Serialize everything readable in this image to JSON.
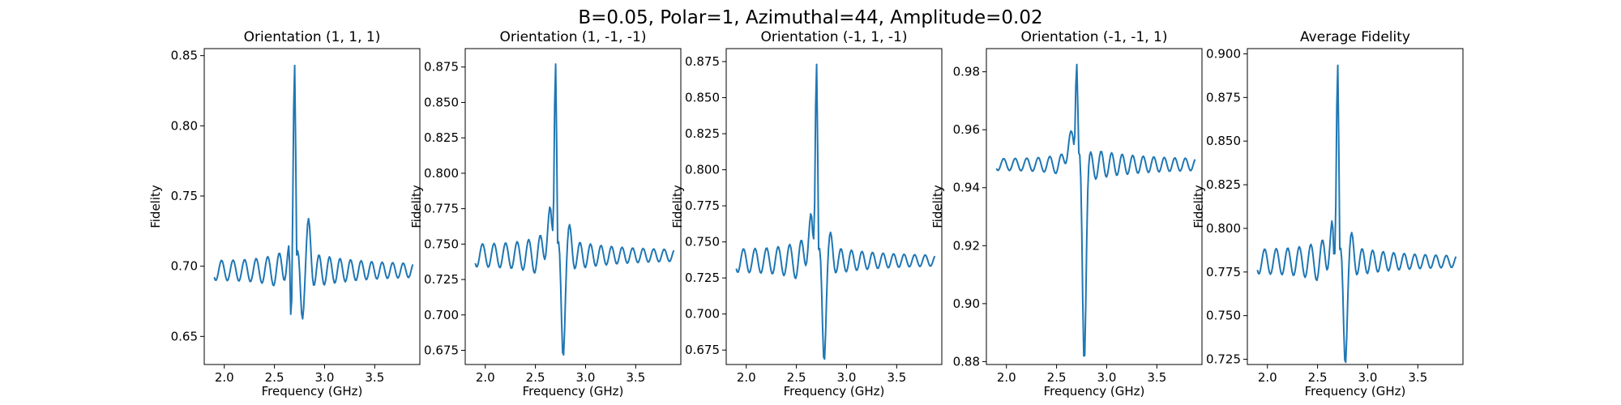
{
  "chart_data": {
    "suptitle": "B=0.05, Polar=1, Azimuthal=44, Amplitude=0.02",
    "line_color": "#1f77b4",
    "panels": [
      {
        "type": "line",
        "title": "Orientation (1, 1, 1)",
        "xlabel": "Frequency (GHz)",
        "ylabel": "Fidelity",
        "xlim": [
          1.8,
          3.95
        ],
        "ylim": [
          0.63,
          0.855
        ],
        "xticks": [
          2.0,
          2.5,
          3.0,
          3.5
        ],
        "xtick_labels": [
          "2.0",
          "2.5",
          "3.0",
          "3.5"
        ],
        "yticks": [
          0.65,
          0.7,
          0.75,
          0.8,
          0.85
        ],
        "ytick_labels": [
          "0.65",
          "0.70",
          "0.75",
          "0.80",
          "0.85"
        ],
        "base": 0.697,
        "pre_amp": 0.007,
        "post_amp": 0.012,
        "peak_y": 0.845,
        "dip_before": 0.64,
        "dip_after": 0.674,
        "bump_before": 0.712,
        "bump_after": 0.721
      },
      {
        "type": "line",
        "title": "Orientation (1, -1, -1)",
        "xlabel": "Frequency (GHz)",
        "ylabel": "Fidelity",
        "xlim": [
          1.8,
          3.95
        ],
        "ylim": [
          0.665,
          0.888
        ],
        "xticks": [
          2.0,
          2.5,
          3.0,
          3.5
        ],
        "xtick_labels": [
          "2.0",
          "2.5",
          "3.0",
          "3.5"
        ],
        "yticks": [
          0.675,
          0.7,
          0.725,
          0.75,
          0.775,
          0.8,
          0.825,
          0.85,
          0.875
        ],
        "ytick_labels": [
          "0.675",
          "0.700",
          "0.725",
          "0.750",
          "0.775",
          "0.800",
          "0.825",
          "0.850",
          "0.875"
        ],
        "base": 0.742,
        "pre_amp": 0.008,
        "post_amp": 0.01,
        "peak_y": 0.879,
        "dip_before": 0.732,
        "dip_after": 0.679,
        "bump_before": 0.775,
        "bump_after": 0.753
      },
      {
        "type": "line",
        "title": "Orientation (-1, 1, -1)",
        "xlabel": "Frequency (GHz)",
        "ylabel": "Fidelity",
        "xlim": [
          1.8,
          3.95
        ],
        "ylim": [
          0.665,
          0.884
        ],
        "xticks": [
          2.0,
          2.5,
          3.0,
          3.5
        ],
        "xtick_labels": [
          "2.0",
          "2.5",
          "3.0",
          "3.5"
        ],
        "yticks": [
          0.675,
          0.7,
          0.725,
          0.75,
          0.775,
          0.8,
          0.825,
          0.85,
          0.875
        ],
        "ytick_labels": [
          "0.675",
          "0.700",
          "0.725",
          "0.750",
          "0.775",
          "0.800",
          "0.825",
          "0.850",
          "0.875"
        ],
        "base": 0.737,
        "pre_amp": 0.008,
        "post_amp": 0.009,
        "peak_y": 0.875,
        "dip_before": 0.724,
        "dip_after": 0.675,
        "bump_before": 0.768,
        "bump_after": 0.747
      },
      {
        "type": "line",
        "title": "Orientation (-1, -1, 1)",
        "xlabel": "Frequency (GHz)",
        "ylabel": "Fidelity",
        "xlim": [
          1.8,
          3.95
        ],
        "ylim": [
          0.879,
          0.988
        ],
        "xticks": [
          2.0,
          2.5,
          3.0,
          3.5
        ],
        "xtick_labels": [
          "2.0",
          "2.5",
          "3.0",
          "3.5"
        ],
        "yticks": [
          0.88,
          0.9,
          0.92,
          0.94,
          0.96,
          0.98
        ],
        "ytick_labels": [
          "0.88",
          "0.90",
          "0.92",
          "0.94",
          "0.96",
          "0.98"
        ],
        "base": 0.948,
        "pre_amp": 0.002,
        "post_amp": 0.005,
        "peak_y": 0.983,
        "dip_before": 0.948,
        "dip_after": 0.884,
        "bump_before": 0.96,
        "bump_after": 0.947
      },
      {
        "type": "line",
        "title": "Average Fidelity",
        "xlabel": "Frequency (GHz)",
        "ylabel": "Fidelity",
        "xlim": [
          1.8,
          3.95
        ],
        "ylim": [
          0.722,
          0.903
        ],
        "xticks": [
          2.0,
          2.5,
          3.0,
          3.5
        ],
        "xtick_labels": [
          "2.0",
          "2.5",
          "3.0",
          "3.5"
        ],
        "yticks": [
          0.725,
          0.75,
          0.775,
          0.8,
          0.825,
          0.85,
          0.875,
          0.9
        ],
        "ytick_labels": [
          "0.725",
          "0.750",
          "0.775",
          "0.800",
          "0.825",
          "0.850",
          "0.875",
          "0.900"
        ],
        "base": 0.781,
        "pre_amp": 0.007,
        "post_amp": 0.008,
        "peak_y": 0.895,
        "dip_before": 0.759,
        "dip_after": 0.729,
        "bump_before": 0.802,
        "bump_after": 0.789
      }
    ]
  }
}
